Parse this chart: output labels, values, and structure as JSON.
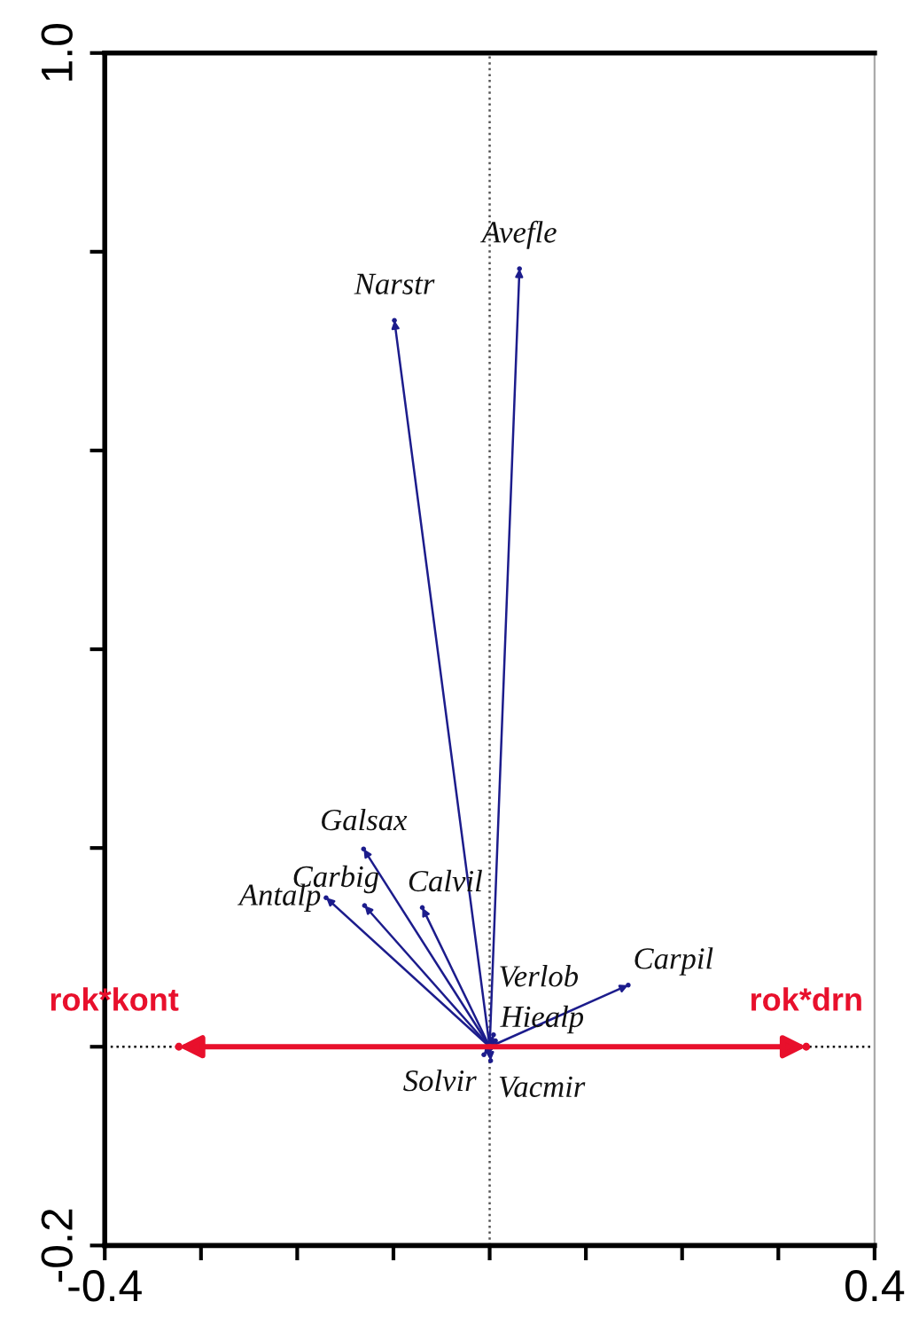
{
  "chart_data": {
    "type": "scatter",
    "marker": "circle",
    "grid": false,
    "series": [
      {
        "color": "#1c1c8c",
        "x": [
          0.031,
          -0.099,
          -0.131,
          -0.13,
          -0.17,
          -0.07,
          0.144,
          0.004,
          0.006,
          -0.006,
          0.001
        ],
        "values": [
          0.783,
          0.731,
          0.199,
          0.142,
          0.15,
          0.14,
          0.062,
          0.012,
          0.006,
          -0.008,
          -0.014
        ]
      },
      {
        "color": "#e8102c",
        "x": [
          -0.323,
          0.329
        ],
        "values": [
          0,
          0
        ]
      }
    ],
    "annotations": [
      {
        "text": "Avefle",
        "x": 0.031,
        "y": 0.783
      },
      {
        "text": "Narstr",
        "x": -0.099,
        "y": 0.731
      },
      {
        "text": "Galsax",
        "x": -0.131,
        "y": 0.199
      },
      {
        "text": "Carbig",
        "x": -0.13,
        "y": 0.142
      },
      {
        "text": "Antalp",
        "x": -0.17,
        "y": 0.15
      },
      {
        "text": "Calvil",
        "x": -0.07,
        "y": 0.14
      },
      {
        "text": "Carpil",
        "x": 0.144,
        "y": 0.062
      },
      {
        "text": "Verlob",
        "x": 0.004,
        "y": 0.012
      },
      {
        "text": "Hiealp",
        "x": 0.006,
        "y": 0.006
      },
      {
        "text": "Solvir",
        "x": -0.006,
        "y": -0.008
      },
      {
        "text": "Vacmir",
        "x": 0.001,
        "y": -0.014
      },
      {
        "text": "rok*kont",
        "x": -0.323,
        "y": 0
      },
      {
        "text": "rok*drn",
        "x": 0.329,
        "y": 0
      }
    ],
    "ref_lines": [
      {
        "axis": "x",
        "value": 0,
        "line_style": "dotted",
        "color": "#555555"
      },
      {
        "axis": "y",
        "value": 0,
        "line_style": "dotted",
        "color": "#000000"
      }
    ],
    "xlim": [
      -0.4,
      0.4
    ],
    "ylim": [
      -0.2,
      1.0
    ],
    "xticks": [
      -0.4,
      {
        "value": -0.3,
        "label": null
      },
      {
        "value": -0.2,
        "label": null
      },
      {
        "value": -0.1,
        "label": null
      },
      {
        "value": 0,
        "label": null
      },
      {
        "value": 0.1,
        "label": null
      },
      {
        "value": 0.2,
        "label": null
      },
      {
        "value": 0.3,
        "label": null
      },
      0.4
    ],
    "yticks": [
      -0.2,
      {
        "value": 0,
        "label": null
      },
      {
        "value": 0.2,
        "label": null
      },
      {
        "value": 0.4,
        "label": null
      },
      {
        "value": 0.6,
        "label": null
      },
      {
        "value": 0.8,
        "label": null
      },
      {
        "value": 1.0,
        "label": "1.0"
      }
    ]
  }
}
